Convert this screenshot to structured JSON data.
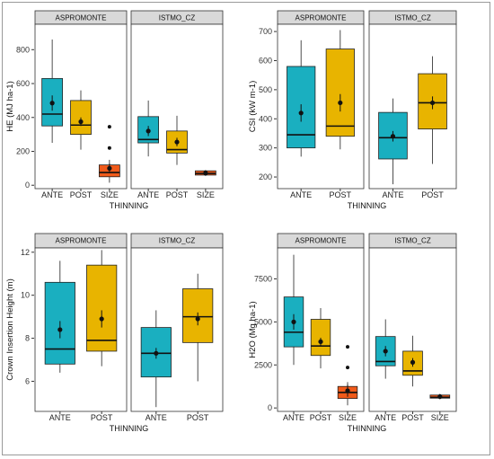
{
  "colors": {
    "ANTE": "#1aafc0",
    "POST": "#e8b400",
    "SIZE": "#f05a1a"
  },
  "chart_data": [
    {
      "type": "boxplot",
      "ylabel": "HE (MJ ha-1)",
      "xlabel": "THINNING",
      "ylim": [
        -20,
        950
      ],
      "yticks": [
        0,
        200,
        400,
        600,
        800
      ],
      "facets": [
        {
          "title": "ASPROMONTE",
          "groups": [
            {
              "name": "ANTE",
              "min": 250,
              "q1": 350,
              "median": 420,
              "q3": 630,
              "max": 860,
              "mean": 485,
              "se": 45,
              "outliers": []
            },
            {
              "name": "POST",
              "min": 210,
              "q1": 300,
              "median": 355,
              "q3": 500,
              "max": 560,
              "mean": 375,
              "se": 25,
              "outliers": []
            },
            {
              "name": "SIZE",
              "min": 15,
              "q1": 50,
              "median": 75,
              "q3": 120,
              "max": 150,
              "mean": 100,
              "se": 28,
              "outliers": [
                345,
                220
              ]
            }
          ]
        },
        {
          "title": "ISTMO_CZ",
          "groups": [
            {
              "name": "ANTE",
              "min": 170,
              "q1": 250,
              "median": 270,
              "q3": 405,
              "max": 500,
              "mean": 320,
              "se": 30,
              "outliers": []
            },
            {
              "name": "POST",
              "min": 120,
              "q1": 190,
              "median": 210,
              "q3": 320,
              "max": 410,
              "mean": 255,
              "se": 25,
              "outliers": []
            },
            {
              "name": "SIZE",
              "min": 55,
              "q1": 60,
              "median": 70,
              "q3": 85,
              "max": 90,
              "mean": 72,
              "se": 8,
              "outliers": []
            }
          ]
        }
      ]
    },
    {
      "type": "boxplot",
      "ylabel": "CSI (kW m-1)",
      "xlabel": "THINNING",
      "ylim": [
        160,
        725
      ],
      "yticks": [
        200,
        300,
        400,
        500,
        600,
        700
      ],
      "facets": [
        {
          "title": "ASPROMONTE",
          "groups": [
            {
              "name": "ANTE",
              "min": 270,
              "q1": 300,
              "median": 345,
              "q3": 580,
              "max": 670,
              "mean": 420,
              "se": 30,
              "outliers": []
            },
            {
              "name": "POST",
              "min": 295,
              "q1": 340,
              "median": 375,
              "q3": 640,
              "max": 705,
              "mean": 455,
              "se": 30,
              "outliers": []
            }
          ]
        },
        {
          "title": "ISTMO_CZ",
          "groups": [
            {
              "name": "ANTE",
              "min": 175,
              "q1": 262,
              "median": 335,
              "q3": 422,
              "max": 470,
              "mean": 340,
              "se": 18,
              "outliers": []
            },
            {
              "name": "POST",
              "min": 245,
              "q1": 365,
              "median": 455,
              "q3": 555,
              "max": 615,
              "mean": 455,
              "se": 22,
              "outliers": []
            }
          ]
        }
      ]
    },
    {
      "type": "boxplot",
      "ylabel": "Crown Insertion Height (m)",
      "xlabel": "THINNING",
      "ylim": [
        4.6,
        12.2
      ],
      "yticks": [
        6,
        8,
        10,
        12
      ],
      "facets": [
        {
          "title": "ASPROMONTE",
          "groups": [
            {
              "name": "ANTE",
              "min": 6.4,
              "q1": 6.8,
              "median": 7.5,
              "q3": 10.6,
              "max": 11.6,
              "mean": 8.4,
              "se": 0.4,
              "outliers": []
            },
            {
              "name": "POST",
              "min": 6.7,
              "q1": 7.4,
              "median": 7.9,
              "q3": 11.4,
              "max": 12.1,
              "mean": 8.9,
              "se": 0.4,
              "outliers": []
            }
          ]
        },
        {
          "title": "ISTMO_CZ",
          "groups": [
            {
              "name": "ANTE",
              "min": 4.8,
              "q1": 6.2,
              "median": 7.3,
              "q3": 8.5,
              "max": 9.3,
              "mean": 7.3,
              "se": 0.25,
              "outliers": []
            },
            {
              "name": "POST",
              "min": 6.0,
              "q1": 7.8,
              "median": 9.0,
              "q3": 10.3,
              "max": 11.0,
              "mean": 8.9,
              "se": 0.3,
              "outliers": []
            }
          ]
        }
      ]
    },
    {
      "type": "boxplot",
      "ylabel": "H2O (Mg ha-1)",
      "xlabel": "THINNING",
      "ylim": [
        -200,
        9300
      ],
      "yticks": [
        0,
        2500,
        5000,
        7500
      ],
      "facets": [
        {
          "title": "ASPROMONTE",
          "groups": [
            {
              "name": "ANTE",
              "min": 2500,
              "q1": 3550,
              "median": 4400,
              "q3": 6450,
              "max": 8900,
              "mean": 5000,
              "se": 450,
              "outliers": []
            },
            {
              "name": "POST",
              "min": 2300,
              "q1": 3050,
              "median": 3600,
              "q3": 5150,
              "max": 5800,
              "mean": 3850,
              "se": 230,
              "outliers": []
            },
            {
              "name": "SIZE",
              "min": 150,
              "q1": 550,
              "median": 900,
              "q3": 1250,
              "max": 1500,
              "mean": 1000,
              "se": 350,
              "outliers": [
                3550,
                2350
              ]
            }
          ]
        },
        {
          "title": "ISTMO_CZ",
          "groups": [
            {
              "name": "ANTE",
              "min": 1700,
              "q1": 2450,
              "median": 2700,
              "q3": 4150,
              "max": 5150,
              "mean": 3300,
              "se": 300,
              "outliers": []
            },
            {
              "name": "POST",
              "min": 1250,
              "q1": 1900,
              "median": 2150,
              "q3": 3300,
              "max": 4200,
              "mean": 2650,
              "se": 250,
              "outliers": []
            },
            {
              "name": "SIZE",
              "min": 500,
              "q1": 570,
              "median": 620,
              "q3": 750,
              "max": 820,
              "mean": 660,
              "se": 90,
              "outliers": []
            }
          ]
        }
      ]
    }
  ]
}
